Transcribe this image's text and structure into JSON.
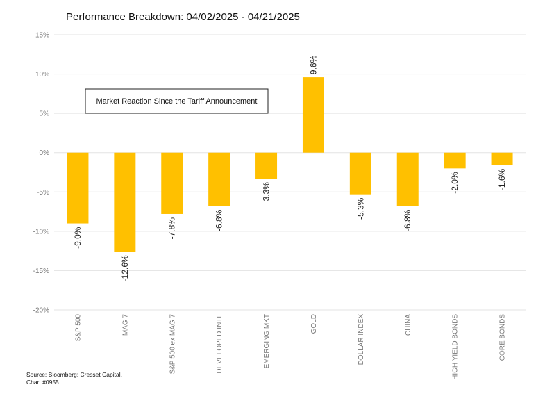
{
  "chart_data": {
    "type": "bar",
    "title": "Performance Breakdown: 04/02/2025 - 04/21/2025",
    "annotation": "Market Reaction Since the Tariff Announcement",
    "categories": [
      "S&P 500",
      "MAG 7",
      "S&P 500 ex MAG 7",
      "DEVELOPED INTL",
      "EMERGING MKT",
      "GOLD",
      "DOLLAR INDEX",
      "CHINA",
      "HIGH YIELD BONDS",
      "CORE BONDS"
    ],
    "values": [
      -9.0,
      -12.6,
      -7.8,
      -6.8,
      -3.3,
      9.6,
      -5.3,
      -6.8,
      -2.0,
      -1.6
    ],
    "value_labels": [
      "-9.0%",
      "-12.6%",
      "-7.8%",
      "-6.8%",
      "-3.3%",
      "9.6%",
      "-5.3%",
      "-6.8%",
      "-2.0%",
      "-1.6%"
    ],
    "ylim": [
      -20,
      15
    ],
    "yticks": [
      15,
      10,
      5,
      0,
      -5,
      -10,
      -15,
      -20
    ],
    "ytick_labels": [
      "15%",
      "10%",
      "5%",
      "0%",
      "-5%",
      "-10%",
      "-15%",
      "-20%"
    ],
    "bar_color": "#FFC000",
    "grid": true,
    "legend": "none"
  },
  "footer": {
    "source": "Source: Bloomberg; Cresset Capital.",
    "chart_id": "Chart #0955"
  }
}
